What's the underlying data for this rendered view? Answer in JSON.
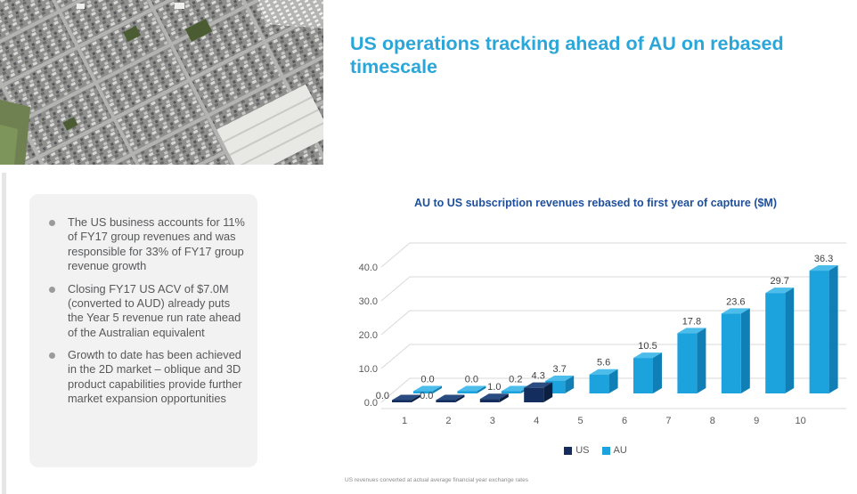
{
  "header": {
    "title": "US operations tracking ahead of AU on rebased timescale"
  },
  "photo": {
    "description": "aerial view of suburban street blocks"
  },
  "bullets": {
    "items": [
      {
        "text": "The US business accounts for 11% of FY17 group revenues and was responsible for 33% of FY17 group revenue growth"
      },
      {
        "text": "Closing FY17 US ACV of $7.0M (converted to AUD) already puts the Year 5 revenue run rate ahead of the Australian equivalent"
      },
      {
        "text": "Growth to date has been achieved in the 2D market – oblique and 3D product capabilities provide further market expansion opportunities"
      }
    ]
  },
  "chart": {
    "footnote": "US revenues converted at actual average financial year exchange rates"
  },
  "chart_data": {
    "type": "bar",
    "title": "AU to US subscription revenues rebased to first year of capture ($M)",
    "xlabel": "",
    "ylabel": "",
    "categories": [
      1,
      2,
      3,
      4,
      5,
      6,
      7,
      8,
      9,
      10
    ],
    "series": [
      {
        "name": "US",
        "values": [
          0.0,
          0.0,
          1.0,
          4.3,
          null,
          null,
          null,
          null,
          null,
          null
        ],
        "color": "#132E5E",
        "color_top": "#2B4C80",
        "color_side": "#0A1F42"
      },
      {
        "name": "AU",
        "values": [
          0.0,
          0.0,
          0.2,
          3.7,
          5.6,
          10.5,
          17.8,
          23.6,
          29.7,
          36.3
        ],
        "color": "#1CA2DD",
        "color_top": "#4CBCEA",
        "color_side": "#0F7FB6"
      }
    ],
    "ylim": [
      0,
      40
    ],
    "yticks": [
      0,
      10,
      20,
      30,
      40
    ],
    "grid": true,
    "legend_position": "bottom",
    "style": "3d-column"
  }
}
